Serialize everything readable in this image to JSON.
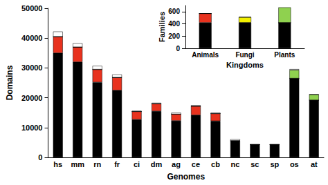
{
  "chart_data": [
    {
      "type": "bar",
      "stacked": true,
      "x_label": "Genomes",
      "y_label": "Domains",
      "categories": [
        "hs",
        "mm",
        "rn",
        "fr",
        "ci",
        "dm",
        "ag",
        "ce",
        "cb",
        "nc",
        "sc",
        "sp",
        "os",
        "at"
      ],
      "series": [
        {
          "color": "#000000",
          "values": [
            35000,
            32000,
            25200,
            22500,
            12700,
            15500,
            12300,
            14200,
            12200,
            5600,
            4300,
            4300,
            26500,
            19200
          ]
        },
        {
          "color": "#e8321e",
          "values": [
            5500,
            5000,
            4300,
            4300,
            2700,
            2500,
            2200,
            3000,
            2500,
            0,
            0,
            0,
            0,
            0
          ]
        },
        {
          "color": "#f2f000",
          "values": [
            0,
            0,
            0,
            0,
            0,
            0,
            0,
            0,
            0,
            0,
            0,
            0,
            0,
            0
          ]
        },
        {
          "color": "#8fd14f",
          "values": [
            0,
            0,
            0,
            0,
            0,
            0,
            0,
            0,
            0,
            0,
            0,
            0,
            2800,
            1900
          ]
        },
        {
          "color": "#ffffff",
          "values": [
            1700,
            1300,
            1200,
            1000,
            200,
            300,
            500,
            300,
            300,
            500,
            0,
            0,
            300,
            0
          ]
        }
      ],
      "ylim": [
        0,
        50000
      ],
      "yticks": [
        0,
        10000,
        20000,
        30000,
        40000,
        50000
      ],
      "grid": false
    },
    {
      "type": "bar",
      "stacked": true,
      "x_label": "Kingdoms",
      "y_label": "Families",
      "categories": [
        "Animals",
        "Fungi",
        "Plants"
      ],
      "series": [
        {
          "color": "#000000",
          "values": [
            420,
            420,
            420
          ]
        },
        {
          "color": "#e8321e",
          "values": [
            150,
            0,
            0
          ]
        },
        {
          "color": "#f2f000",
          "values": [
            0,
            90,
            0
          ]
        },
        {
          "color": "#8fd14f",
          "values": [
            0,
            0,
            250
          ]
        }
      ],
      "ylim": [
        0,
        700
      ],
      "yticks": [
        0,
        200,
        400,
        600
      ],
      "grid": false
    }
  ]
}
